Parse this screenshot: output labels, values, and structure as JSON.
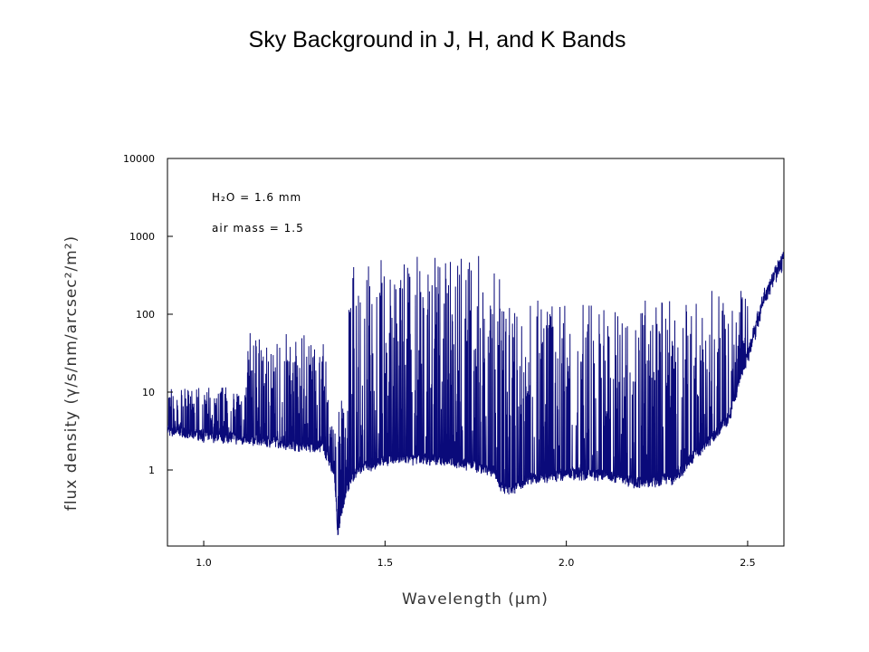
{
  "slide_title": "Sky Background in J, H, and K Bands",
  "chart_data": {
    "type": "line",
    "xlabel": "Wavelength (μm)",
    "ylabel": "flux density (γ/s/nm/arcsec²/m²)",
    "xlim": [
      0.9,
      2.6
    ],
    "ylim": [
      0.1,
      10000
    ],
    "yscale": "log",
    "x_ticks": [
      "1.0",
      "1.5",
      "2.0",
      "2.5"
    ],
    "y_ticks": [
      "1",
      "10",
      "100",
      "1000",
      "10000"
    ],
    "annotations": [
      "H₂O = 1.6 mm",
      "air mass = 1.5"
    ],
    "series_color": "#0a0a7a",
    "continuum": [
      [
        0.9,
        3.2
      ],
      [
        1.0,
        2.8
      ],
      [
        1.1,
        2.6
      ],
      [
        1.2,
        2.3
      ],
      [
        1.3,
        2.0
      ],
      [
        1.33,
        2.0
      ],
      [
        1.36,
        0.9
      ],
      [
        1.37,
        0.15
      ],
      [
        1.39,
        0.5
      ],
      [
        1.42,
        1.0
      ],
      [
        1.5,
        1.4
      ],
      [
        1.6,
        1.4
      ],
      [
        1.7,
        1.3
      ],
      [
        1.8,
        1.0
      ],
      [
        1.82,
        0.6
      ],
      [
        1.85,
        0.55
      ],
      [
        1.9,
        0.8
      ],
      [
        2.0,
        0.9
      ],
      [
        2.1,
        0.9
      ],
      [
        2.2,
        0.7
      ],
      [
        2.3,
        0.8
      ],
      [
        2.35,
        1.5
      ],
      [
        2.4,
        2.5
      ],
      [
        2.45,
        5
      ],
      [
        2.5,
        30
      ],
      [
        2.55,
        200
      ],
      [
        2.6,
        550
      ]
    ],
    "bands": [
      {
        "range": [
          0.9,
          1.12
        ],
        "peak": 12
      },
      {
        "range": [
          1.12,
          1.34
        ],
        "peak": 60
      },
      {
        "range": [
          1.34,
          1.4
        ],
        "peak": 8
      },
      {
        "range": [
          1.4,
          1.82
        ],
        "peak": 600
      },
      {
        "range": [
          1.82,
          2.35
        ],
        "peak": 150
      },
      {
        "range": [
          2.35,
          2.6
        ],
        "peak": 200
      }
    ]
  }
}
